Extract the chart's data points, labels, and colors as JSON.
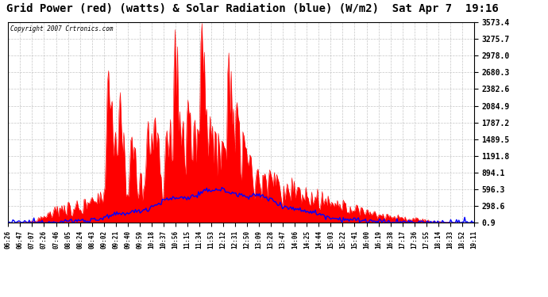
{
  "title": "Grid Power (red) (watts) & Solar Radiation (blue) (W/m2)  Sat Apr 7  19:16",
  "copyright": "Copyright 2007 Crtronics.com",
  "ylabel_right_ticks": [
    0.9,
    298.6,
    596.3,
    894.1,
    1191.8,
    1489.5,
    1787.2,
    2084.9,
    2382.6,
    2680.3,
    2978.0,
    3275.7,
    3573.4
  ],
  "ymin": 0.9,
  "ymax": 3573.4,
  "background_color": "#ffffff",
  "plot_bg_color": "#ffffff",
  "grid_color": "#c0c0c0",
  "title_fontsize": 10,
  "red_color": "#ff0000",
  "blue_color": "#0000ff",
  "x_labels": [
    "06:26",
    "06:47",
    "07:07",
    "07:26",
    "07:46",
    "08:05",
    "08:24",
    "08:43",
    "09:02",
    "09:21",
    "09:40",
    "09:59",
    "10:18",
    "10:37",
    "10:56",
    "11:15",
    "11:34",
    "11:53",
    "12:12",
    "12:31",
    "12:50",
    "13:09",
    "13:28",
    "13:47",
    "14:06",
    "14:25",
    "14:44",
    "15:03",
    "15:22",
    "15:41",
    "16:00",
    "16:19",
    "16:38",
    "17:17",
    "17:36",
    "17:55",
    "18:14",
    "18:33",
    "18:52",
    "19:11"
  ]
}
